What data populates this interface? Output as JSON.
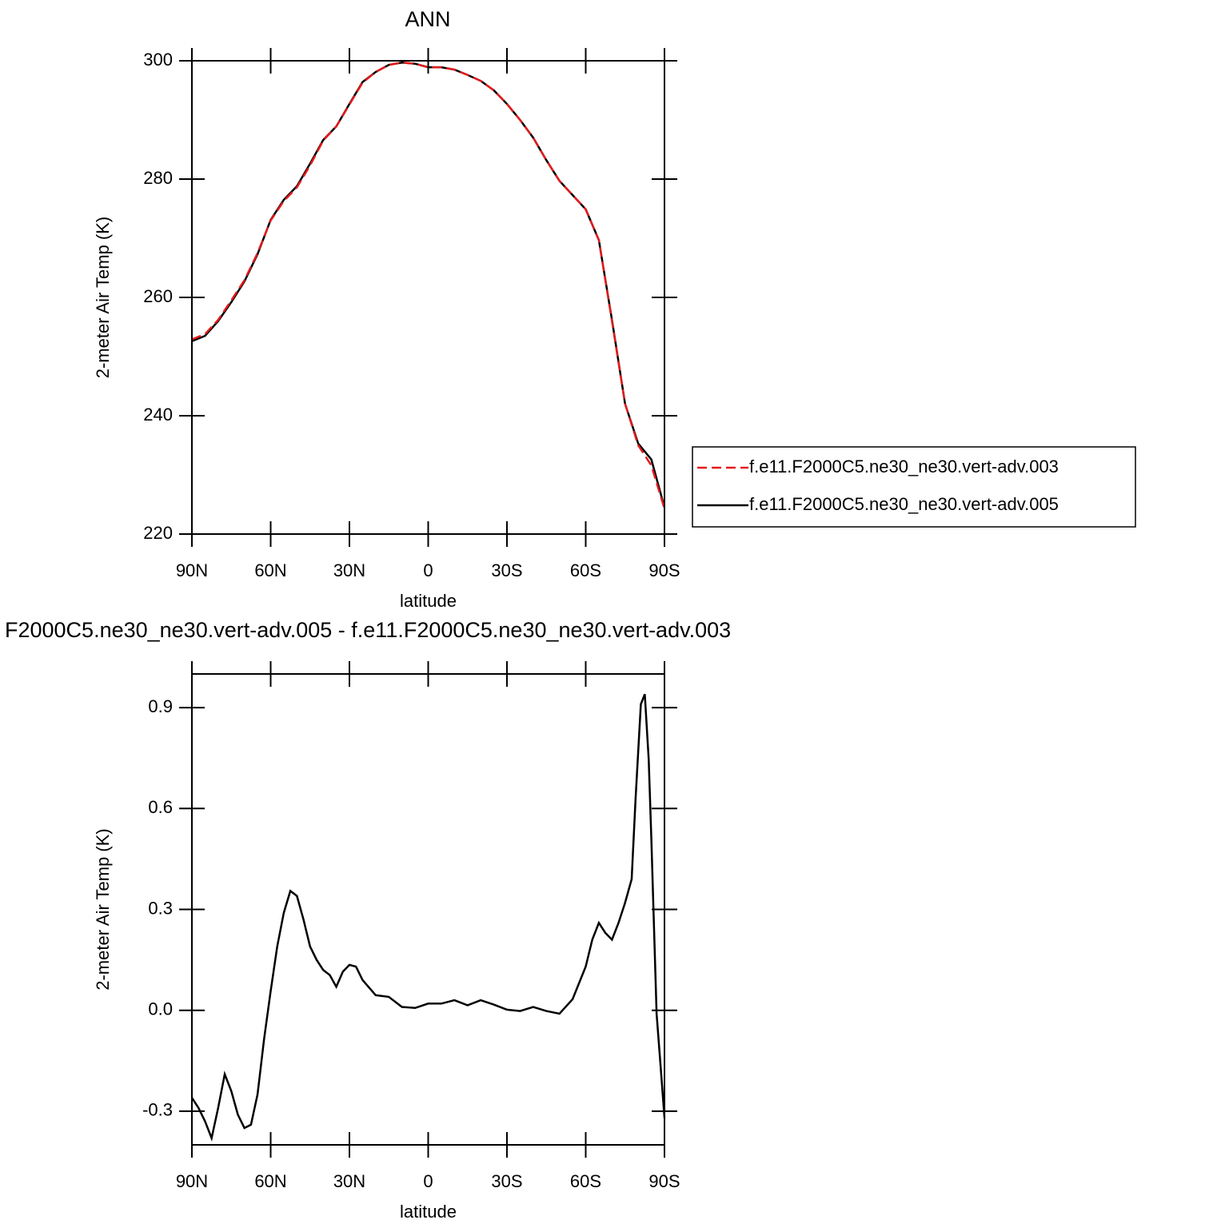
{
  "chart_data": [
    {
      "type": "line",
      "title": "ANN",
      "xlabel": "latitude",
      "ylabel": "2-meter Air Temp (K)",
      "x": [
        90,
        85,
        80,
        75,
        70,
        65,
        60,
        55,
        50,
        45,
        40,
        35,
        30,
        25,
        20,
        15,
        10,
        5,
        0,
        -5,
        -10,
        -15,
        -20,
        -25,
        -30,
        -35,
        -40,
        -45,
        -50,
        -55,
        -60,
        -65,
        -70,
        -75,
        -80,
        -85,
        -90
      ],
      "series": [
        {
          "name": "f.e11.F2000C5.ne30_ne30.vert-adv.003",
          "color": "#e41a1c",
          "line_style": "dashed",
          "values": [
            252.9,
            253.8,
            256.2,
            259.5,
            262.9,
            267.5,
            273.0,
            276.3,
            278.6,
            282.3,
            286.5,
            288.9,
            292.6,
            296.3,
            298.1,
            299.3,
            299.7,
            299.5,
            298.9,
            298.9,
            298.5,
            297.6,
            296.6,
            295.0,
            292.7,
            290.0,
            287.0,
            283.2,
            279.7,
            277.3,
            274.9,
            269.7,
            256.0,
            242.0,
            235.0,
            231.6,
            224.3
          ]
        },
        {
          "name": "f.e11.F2000C5.ne30_ne30.vert-adv.005",
          "color": "#000000",
          "line_style": "solid",
          "values": [
            252.6,
            253.5,
            256.0,
            259.2,
            262.7,
            267.3,
            273.1,
            276.5,
            278.8,
            282.6,
            286.6,
            288.9,
            292.7,
            296.4,
            298.1,
            299.3,
            299.7,
            299.5,
            298.9,
            298.9,
            298.5,
            297.6,
            296.6,
            295.0,
            292.7,
            290.0,
            287.0,
            283.2,
            279.7,
            277.3,
            274.9,
            269.7,
            256.2,
            242.0,
            235.3,
            232.6,
            224.5
          ]
        }
      ],
      "xlim": [
        90,
        -90
      ],
      "xticks": [
        {
          "value": 90,
          "label": "90N"
        },
        {
          "value": 60,
          "label": "60N"
        },
        {
          "value": 30,
          "label": "30N"
        },
        0,
        {
          "value": -30,
          "label": "30S"
        },
        {
          "value": -60,
          "label": "60S"
        },
        {
          "value": -90,
          "label": "90S"
        }
      ],
      "ylim": [
        220,
        300
      ],
      "yticks": [
        220,
        240,
        260,
        280,
        300
      ],
      "legend": "right"
    },
    {
      "type": "line",
      "title": "F2000C5.ne30_ne30.vert-adv.005 - f.e11.F2000C5.ne30_ne30.vert-adv.003",
      "xlabel": "latitude",
      "ylabel": "2-meter Air Temp (K)",
      "x": [
        90,
        87.5,
        85,
        82.5,
        80,
        77.5,
        75,
        72.5,
        70,
        67.5,
        65,
        62.5,
        60,
        57.5,
        55,
        52.5,
        50,
        47.5,
        45,
        42.5,
        40,
        37.5,
        35,
        32.5,
        30,
        27.5,
        25,
        20,
        15,
        10,
        5,
        0,
        -5,
        -10,
        -15,
        -20,
        -25,
        -30,
        -35,
        -40,
        -45,
        -50,
        -55,
        -60,
        -62.5,
        -65,
        -67.5,
        -70,
        -72.5,
        -75,
        -77.5,
        -79,
        -81,
        -82.5,
        -84,
        -85,
        -87,
        -89,
        -90
      ],
      "series": [
        {
          "color": "#000000",
          "line_style": "solid",
          "values": [
            -0.26,
            -0.29,
            -0.33,
            -0.38,
            -0.29,
            -0.19,
            -0.24,
            -0.31,
            -0.35,
            -0.34,
            -0.25,
            -0.085,
            0.057,
            0.19,
            0.29,
            0.355,
            0.34,
            0.27,
            0.19,
            0.15,
            0.12,
            0.105,
            0.07,
            0.115,
            0.135,
            0.13,
            0.09,
            0.045,
            0.04,
            0.01,
            0.007,
            0.02,
            0.02,
            0.03,
            0.015,
            0.03,
            0.017,
            0.002,
            -0.002,
            0.01,
            -0.002,
            -0.01,
            0.033,
            0.13,
            0.21,
            0.26,
            0.23,
            0.21,
            0.26,
            0.32,
            0.39,
            0.63,
            0.91,
            0.94,
            0.745,
            0.51,
            -0.01,
            -0.215,
            -0.32
          ]
        }
      ],
      "xlim": [
        90,
        -90
      ],
      "xticks": [
        {
          "value": 90,
          "label": "90N"
        },
        {
          "value": 60,
          "label": "60N"
        },
        {
          "value": 30,
          "label": "30N"
        },
        0,
        {
          "value": -30,
          "label": "30S"
        },
        {
          "value": -60,
          "label": "60S"
        },
        {
          "value": -90,
          "label": "90S"
        }
      ],
      "ylim": [
        -0.4,
        1.0
      ],
      "yticks": [
        -0.3,
        {
          "value": 0,
          "label": "0.0"
        },
        0.3,
        0.6,
        0.9
      ]
    }
  ]
}
